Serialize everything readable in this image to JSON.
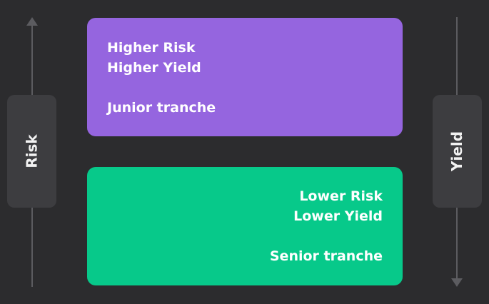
{
  "risk_axis": {
    "label": "Risk",
    "direction": "up"
  },
  "yield_axis": {
    "label": "Yield",
    "direction": "down"
  },
  "junior_tranche": {
    "line1": "Higher Risk",
    "line2": "Higher Yield",
    "name": "Junior tranche",
    "color": "#9565df"
  },
  "senior_tranche": {
    "line1": "Lower Risk",
    "line2": "Lower Yield",
    "name": "Senior tranche",
    "color": "#07c98a"
  }
}
